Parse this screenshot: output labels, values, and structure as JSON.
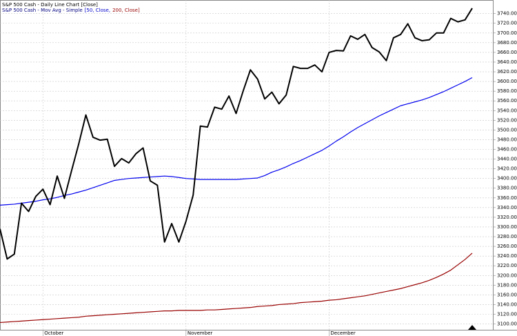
{
  "chart_data": {
    "type": "line",
    "title": "S&P 500 Cash - Daily Line Chart [Close]",
    "subtitle_parts": [
      {
        "text": "S&P 500 Cash - Mov Avg - Simple",
        "color": "#000080"
      },
      {
        "text": "[50, Close,",
        "color": "#0000cc"
      },
      {
        "text": "200, Close]",
        "color": "#990000"
      }
    ],
    "categories": [
      null,
      null,
      null,
      null,
      null,
      null,
      "October",
      null,
      null,
      null,
      null,
      null,
      null,
      null,
      null,
      null,
      null,
      null,
      null,
      null,
      null,
      null,
      null,
      null,
      null,
      null,
      "November",
      null,
      null,
      null,
      null,
      null,
      null,
      null,
      null,
      null,
      null,
      null,
      null,
      null,
      null,
      null,
      null,
      null,
      null,
      null,
      "December",
      null,
      null,
      null,
      null,
      null,
      null,
      null,
      null,
      null,
      null,
      null,
      null,
      null,
      null,
      null,
      null,
      null,
      null,
      null,
      null
    ],
    "series": [
      {
        "color": "#000000",
        "width": 2,
        "values": [
          3296,
          3234,
          3244,
          3349,
          3332,
          3363,
          3378,
          3346,
          3405,
          3359,
          3416,
          3471,
          3531,
          3485,
          3479,
          3481,
          3425,
          3441,
          3432,
          3451,
          3463,
          3395,
          3386,
          3269,
          3307,
          3269,
          3312,
          3366,
          3508,
          3506,
          3547,
          3543,
          3570,
          3534,
          3581,
          3624,
          3605,
          3564,
          3578,
          3554,
          3572,
          3631,
          3627,
          3627,
          3634,
          3620,
          3660,
          3664,
          3663,
          3694,
          3687,
          3697,
          3670,
          3661,
          3643,
          3690,
          3697,
          3719,
          3690,
          3684,
          3686,
          3700,
          3700,
          3730,
          3723,
          3727,
          3751
        ]
      },
      {
        "color": "#0000ee",
        "width": 1.2,
        "values": [
          3345,
          3346,
          3347,
          3349,
          3351,
          3353,
          3356,
          3358,
          3361,
          3365,
          3368,
          3372,
          3376,
          3381,
          3386,
          3391,
          3396,
          3398,
          3400,
          3401,
          3402,
          3403,
          3404,
          3405,
          3404,
          3402,
          3400,
          3399,
          3398,
          3398,
          3398,
          3398,
          3398,
          3398,
          3399,
          3400,
          3401,
          3406,
          3413,
          3418,
          3424,
          3431,
          3437,
          3444,
          3451,
          3458,
          3467,
          3477,
          3486,
          3496,
          3505,
          3513,
          3521,
          3529,
          3536,
          3543,
          3550,
          3554,
          3558,
          3562,
          3567,
          3573,
          3579,
          3586,
          3593,
          3600,
          3608
        ]
      },
      {
        "color": "#990000",
        "width": 1.2,
        "values": [
          3103,
          3104,
          3105,
          3106,
          3107,
          3108,
          3109,
          3110,
          3111,
          3112,
          3113,
          3114,
          3116,
          3117,
          3118,
          3119,
          3120,
          3121,
          3122,
          3123,
          3124,
          3125,
          3126,
          3127,
          3127,
          3128,
          3128,
          3128,
          3128,
          3129,
          3129,
          3130,
          3131,
          3132,
          3133,
          3134,
          3136,
          3137,
          3138,
          3140,
          3141,
          3142,
          3144,
          3145,
          3146,
          3147,
          3149,
          3150,
          3152,
          3154,
          3156,
          3158,
          3161,
          3164,
          3167,
          3170,
          3173,
          3177,
          3181,
          3185,
          3190,
          3196,
          3203,
          3211,
          3222,
          3233,
          3246
        ]
      }
    ],
    "ylim": [
      3088,
      3768
    ],
    "yticks": [
      {
        "value": 3100,
        "label": "3100.000"
      },
      {
        "value": 3120,
        "label": "3120.000"
      },
      {
        "value": 3140,
        "label": "3140.000"
      },
      {
        "value": 3160,
        "label": "3160.000"
      },
      {
        "value": 3180,
        "label": "3180.000"
      },
      {
        "value": 3200,
        "label": "3200.000"
      },
      {
        "value": 3220,
        "label": "3220.000"
      },
      {
        "value": 3240,
        "label": "3240.000"
      },
      {
        "value": 3260,
        "label": "3260.000"
      },
      {
        "value": 3280,
        "label": "3280.000"
      },
      {
        "value": 3300,
        "label": "3300.000"
      },
      {
        "value": 3320,
        "label": "3320.000"
      },
      {
        "value": 3340,
        "label": "3340.000"
      },
      {
        "value": 3360,
        "label": "3360.000"
      },
      {
        "value": 3380,
        "label": "3380.000"
      },
      {
        "value": 3400,
        "label": "3400.000"
      },
      {
        "value": 3420,
        "label": "3420.000"
      },
      {
        "value": 3440,
        "label": "3440.000"
      },
      {
        "value": 3460,
        "label": "3460.000"
      },
      {
        "value": 3480,
        "label": "3480.000"
      },
      {
        "value": 3500,
        "label": "3500.000"
      },
      {
        "value": 3520,
        "label": "3520.000"
      },
      {
        "value": 3540,
        "label": "3540.000"
      },
      {
        "value": 3560,
        "label": "3560.000"
      },
      {
        "value": 3580,
        "label": "3580.000"
      },
      {
        "value": 3600,
        "label": "3600.000"
      },
      {
        "value": 3620,
        "label": "3620.000"
      },
      {
        "value": 3640,
        "label": "3640.000"
      },
      {
        "value": 3660,
        "label": "3660.000"
      },
      {
        "value": 3680,
        "label": "3680.000"
      },
      {
        "value": 3700,
        "label": "3700.000"
      },
      {
        "value": 3720,
        "label": "3720.000"
      },
      {
        "value": 3740,
        "label": "3740.000"
      }
    ],
    "grid": true
  }
}
